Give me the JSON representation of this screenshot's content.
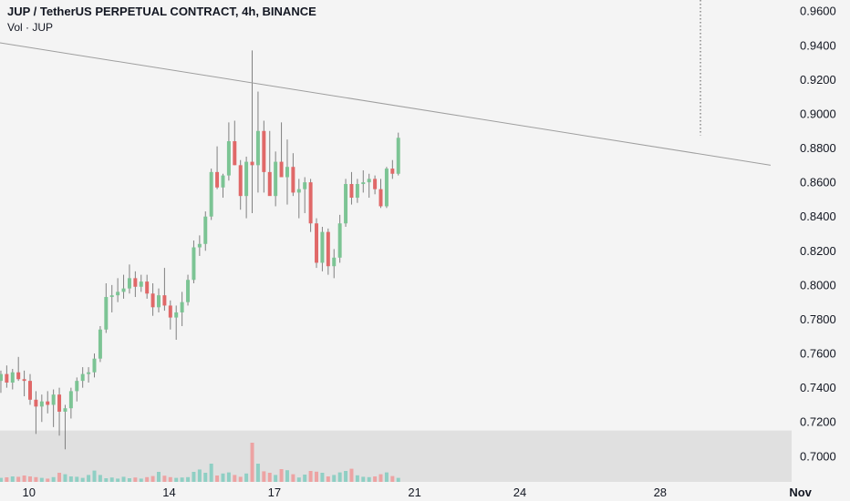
{
  "header": {
    "title": "JUP / TetherUS PERPETUAL CONTRACT, 4h, BINANCE",
    "vol_label": "Vol · JUP"
  },
  "colors": {
    "background": "#f4f4f4",
    "up": "#7cc494",
    "down": "#e06868",
    "vol_up": "#8fcfc4",
    "vol_down": "#eda3a3",
    "volume_band": "#e0e0e0",
    "trendline": "#9e9e9e",
    "dotted_line": "#555555",
    "axis_text": "#131722"
  },
  "chart_data": {
    "type": "candlestick",
    "title": "JUP / TetherUS PERPETUAL CONTRACT, 4h, BINANCE",
    "xlabel": "",
    "ylabel": "",
    "ylim": [
      0.685,
      0.9665
    ],
    "y_ticks": [
      "0.7000",
      "0.7200",
      "0.7400",
      "0.7600",
      "0.7800",
      "0.8000",
      "0.8200",
      "0.8400",
      "0.8600",
      "0.8800",
      "0.9000",
      "0.9200",
      "0.9400",
      "0.9600"
    ],
    "x_range_days": [
      9.175,
      31.75
    ],
    "x_ticks": [
      {
        "day": 10,
        "label": "10"
      },
      {
        "day": 14,
        "label": "14"
      },
      {
        "day": 17,
        "label": "17"
      },
      {
        "day": 21,
        "label": "21"
      },
      {
        "day": 24,
        "label": "24"
      },
      {
        "day": 28,
        "label": "28"
      },
      {
        "day": 32,
        "label": "Nov"
      }
    ],
    "first_candle_day": 9.2,
    "bar_period_days": 0.16667,
    "candles": [
      [
        0.744,
        0.75,
        0.737,
        0.748
      ],
      [
        0.748,
        0.753,
        0.74,
        0.743
      ],
      [
        0.743,
        0.751,
        0.739,
        0.749
      ],
      [
        0.749,
        0.758,
        0.744,
        0.745
      ],
      [
        0.745,
        0.75,
        0.735,
        0.744
      ],
      [
        0.744,
        0.748,
        0.73,
        0.733
      ],
      [
        0.733,
        0.738,
        0.713,
        0.729
      ],
      [
        0.729,
        0.736,
        0.72,
        0.732
      ],
      [
        0.732,
        0.738,
        0.725,
        0.73
      ],
      [
        0.73,
        0.739,
        0.717,
        0.736
      ],
      [
        0.736,
        0.74,
        0.712,
        0.726
      ],
      [
        0.726,
        0.73,
        0.704,
        0.728
      ],
      [
        0.728,
        0.74,
        0.722,
        0.738
      ],
      [
        0.738,
        0.746,
        0.732,
        0.744
      ],
      [
        0.744,
        0.752,
        0.74,
        0.748
      ],
      [
        0.748,
        0.752,
        0.743,
        0.749
      ],
      [
        0.749,
        0.76,
        0.746,
        0.757
      ],
      [
        0.757,
        0.776,
        0.755,
        0.774
      ],
      [
        0.774,
        0.801,
        0.772,
        0.793
      ],
      [
        0.793,
        0.8,
        0.784,
        0.794
      ],
      [
        0.794,
        0.804,
        0.79,
        0.796
      ],
      [
        0.796,
        0.806,
        0.792,
        0.798
      ],
      [
        0.798,
        0.812,
        0.795,
        0.804
      ],
      [
        0.804,
        0.808,
        0.793,
        0.799
      ],
      [
        0.799,
        0.806,
        0.796,
        0.802
      ],
      [
        0.802,
        0.806,
        0.792,
        0.795
      ],
      [
        0.795,
        0.801,
        0.782,
        0.787
      ],
      [
        0.787,
        0.798,
        0.784,
        0.794
      ],
      [
        0.794,
        0.81,
        0.785,
        0.788
      ],
      [
        0.788,
        0.791,
        0.774,
        0.781
      ],
      [
        0.781,
        0.788,
        0.768,
        0.784
      ],
      [
        0.784,
        0.796,
        0.776,
        0.79
      ],
      [
        0.79,
        0.806,
        0.788,
        0.803
      ],
      [
        0.803,
        0.826,
        0.801,
        0.822
      ],
      [
        0.822,
        0.829,
        0.817,
        0.824
      ],
      [
        0.824,
        0.843,
        0.82,
        0.84
      ],
      [
        0.84,
        0.868,
        0.838,
        0.866
      ],
      [
        0.866,
        0.881,
        0.856,
        0.857
      ],
      [
        0.857,
        0.865,
        0.851,
        0.864
      ],
      [
        0.864,
        0.895,
        0.861,
        0.884
      ],
      [
        0.884,
        0.896,
        0.87,
        0.87
      ],
      [
        0.87,
        0.873,
        0.844,
        0.852
      ],
      [
        0.852,
        0.875,
        0.839,
        0.872
      ],
      [
        0.872,
        0.937,
        0.842,
        0.87
      ],
      [
        0.87,
        0.913,
        0.854,
        0.89
      ],
      [
        0.89,
        0.896,
        0.854,
        0.866
      ],
      [
        0.866,
        0.89,
        0.853,
        0.852
      ],
      [
        0.852,
        0.878,
        0.846,
        0.872
      ],
      [
        0.872,
        0.895,
        0.864,
        0.863
      ],
      [
        0.863,
        0.885,
        0.847,
        0.869
      ],
      [
        0.869,
        0.877,
        0.852,
        0.854
      ],
      [
        0.854,
        0.862,
        0.839,
        0.856
      ],
      [
        0.856,
        0.863,
        0.842,
        0.86
      ],
      [
        0.86,
        0.862,
        0.831,
        0.836
      ],
      [
        0.836,
        0.839,
        0.81,
        0.813
      ],
      [
        0.813,
        0.834,
        0.808,
        0.831
      ],
      [
        0.831,
        0.833,
        0.806,
        0.811
      ],
      [
        0.811,
        0.821,
        0.804,
        0.816
      ],
      [
        0.816,
        0.841,
        0.813,
        0.836
      ],
      [
        0.836,
        0.862,
        0.834,
        0.859
      ],
      [
        0.859,
        0.866,
        0.847,
        0.851
      ],
      [
        0.851,
        0.862,
        0.848,
        0.859
      ],
      [
        0.859,
        0.867,
        0.854,
        0.86
      ],
      [
        0.86,
        0.865,
        0.851,
        0.862
      ],
      [
        0.862,
        0.864,
        0.853,
        0.856
      ],
      [
        0.856,
        0.862,
        0.845,
        0.846
      ],
      [
        0.846,
        0.869,
        0.845,
        0.868
      ],
      [
        0.868,
        0.873,
        0.862,
        0.865
      ],
      [
        0.865,
        0.889,
        0.864,
        0.886
      ]
    ],
    "volume": [
      0.22,
      0.25,
      0.3,
      0.28,
      0.35,
      0.3,
      0.26,
      0.22,
      0.18,
      0.26,
      0.5,
      0.42,
      0.3,
      0.28,
      0.22,
      0.38,
      0.62,
      0.38,
      0.2,
      0.24,
      0.18,
      0.28,
      0.2,
      0.24,
      0.18,
      0.26,
      0.32,
      0.55,
      0.34,
      0.26,
      0.22,
      0.24,
      0.26,
      0.55,
      0.68,
      0.5,
      1.0,
      0.35,
      0.46,
      0.52,
      0.38,
      0.28,
      0.46,
      2.15,
      1.0,
      0.58,
      0.5,
      0.38,
      0.7,
      0.64,
      0.42,
      0.24,
      0.4,
      0.6,
      0.56,
      0.5,
      0.3,
      0.38,
      0.52,
      0.6,
      0.72,
      0.36,
      0.28,
      0.26,
      0.3,
      0.42,
      0.52,
      0.32,
      0.22
    ],
    "volume_band_top_price": 0.715,
    "trendline": {
      "from": {
        "day": 9.175,
        "price": 0.9415
      },
      "to": {
        "day": 31.15,
        "price": 0.87
      }
    },
    "dotted_vertical_day": 29.15
  }
}
